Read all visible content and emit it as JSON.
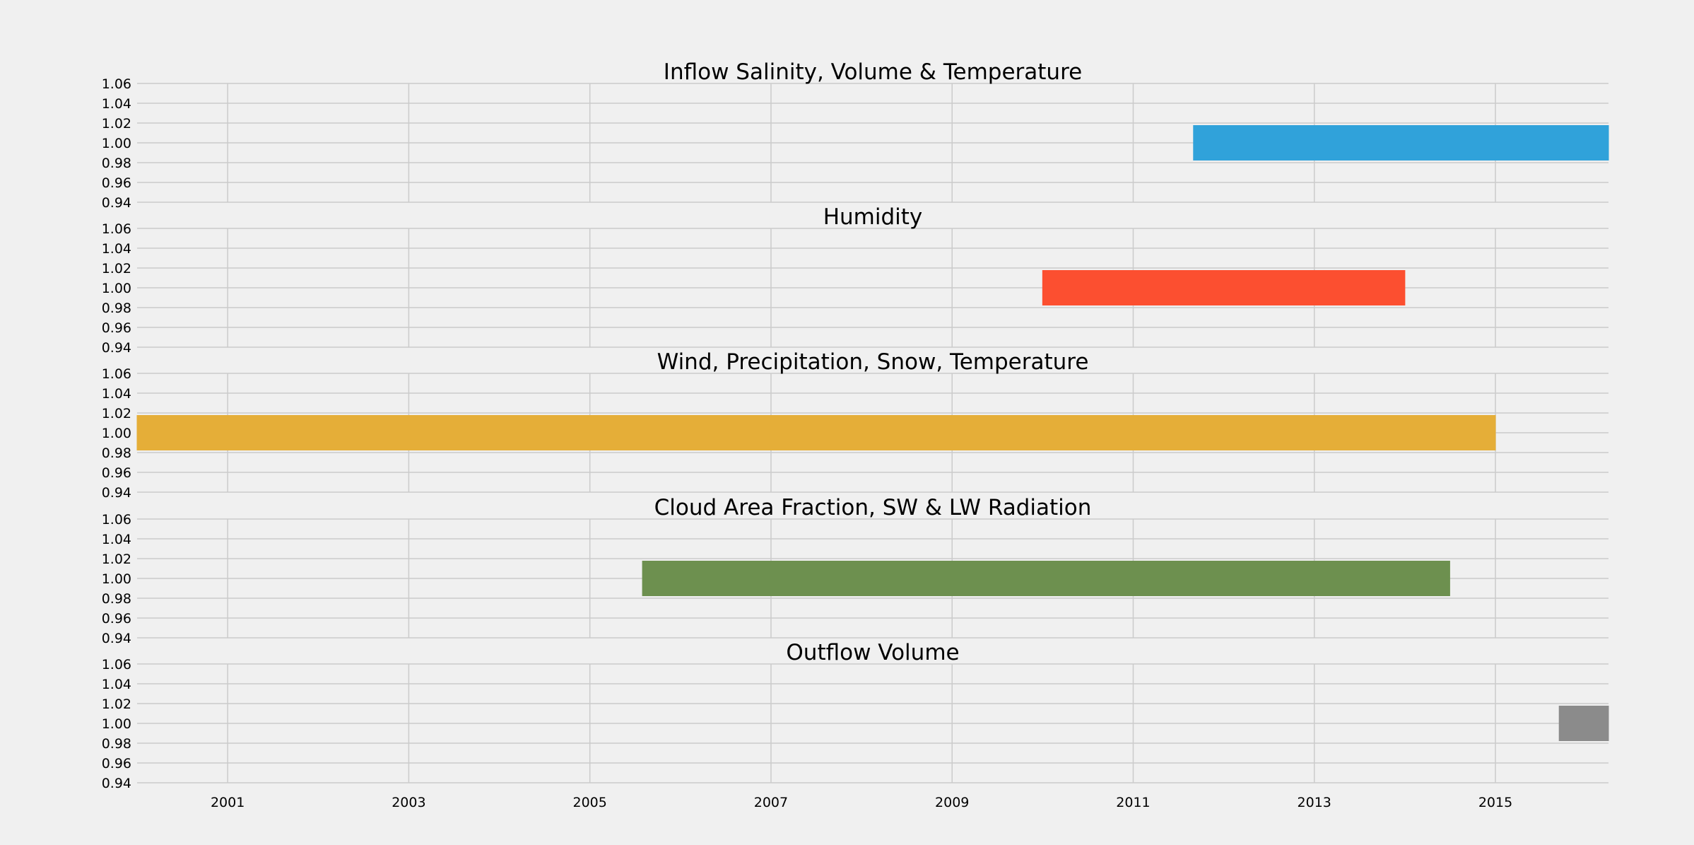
{
  "chart_data": {
    "type": "bar",
    "orientation": "horizontal",
    "layout": "5 stacked subplots sharing x axis",
    "x_axis": {
      "type": "date",
      "range": [
        "2000-01-01",
        "2016-04-01"
      ],
      "ticks": [
        "2001",
        "2003",
        "2005",
        "2007",
        "2009",
        "2011",
        "2013",
        "2015"
      ]
    },
    "y_axis": {
      "range": [
        0.94,
        1.06
      ],
      "ticks": [
        "1.06",
        "1.04",
        "1.02",
        "1.00",
        "0.98",
        "0.96",
        "0.94"
      ]
    },
    "grid": true,
    "subplots": [
      {
        "title": "Inflow Salinity, Volume & Temperature",
        "start": "2011-09-01",
        "end": "2016-04-01",
        "y": 1.0,
        "height": 0.035,
        "color": "#30a2da"
      },
      {
        "title": "Humidity",
        "start": "2010-01-01",
        "end": "2014-01-01",
        "y": 1.0,
        "height": 0.035,
        "color": "#fc4f30"
      },
      {
        "title": "Wind, Precipitation, Snow, Temperature",
        "start": "2000-01-01",
        "end": "2015-01-01",
        "y": 1.0,
        "height": 0.035,
        "color": "#e5ae38"
      },
      {
        "title": "Cloud Area Fraction, SW & LW Radiation",
        "start": "2005-08-01",
        "end": "2014-07-01",
        "y": 1.0,
        "height": 0.035,
        "color": "#6d904f"
      },
      {
        "title": "Outflow Volume",
        "start": "2015-09-15",
        "end": "2016-04-01",
        "y": 1.0,
        "height": 0.035,
        "color": "#8b8b8b"
      }
    ]
  }
}
